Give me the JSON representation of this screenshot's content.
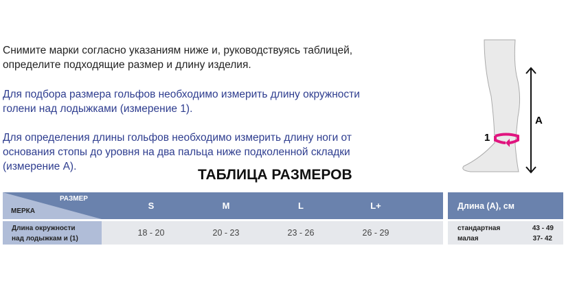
{
  "intro": {
    "p1_l1": "Снимите марки согласно указаниям ниже и, руководствуясь таблицей,",
    "p1_l2": "определите подходящие размер и длину изделия.",
    "p2_l1": "Для подбора размера гольфов необходимо измерить длину окружности",
    "p2_l2": "голени над лодыжками (измерение 1).",
    "p3_l1": "Для определения длины гольфов необходимо измерить длину ноги от",
    "p3_l2": "основания стопы до уровня на два пальца ниже подколенной складки",
    "p3_l3": "(измерение А)."
  },
  "table_title": "ТАБЛИЦА РАЗМЕРОВ",
  "table": {
    "corner_top": "РАЗМЕР",
    "corner_bottom": "МЕРКА",
    "sizes": [
      "S",
      "M",
      "L",
      "L+"
    ],
    "row_label_l1": "Длина окружности",
    "row_label_l2": "над лодыжкам и (1)",
    "values": [
      "18 - 20",
      "20 - 23",
      "23 - 26",
      "26 - 29"
    ]
  },
  "length_table": {
    "header": "Длина (А), см",
    "rows": [
      {
        "name": "стандартная",
        "value": "43 - 49"
      },
      {
        "name": "малая",
        "value": "37- 42"
      }
    ]
  },
  "figure": {
    "label_1": "1",
    "label_a": "A",
    "accent": "#e0157f"
  },
  "colors": {
    "header": "#6a82ad",
    "label_cell": "#b0bdd8",
    "cell": "#e6e8ec",
    "blue_text": "#2e3d8f"
  }
}
